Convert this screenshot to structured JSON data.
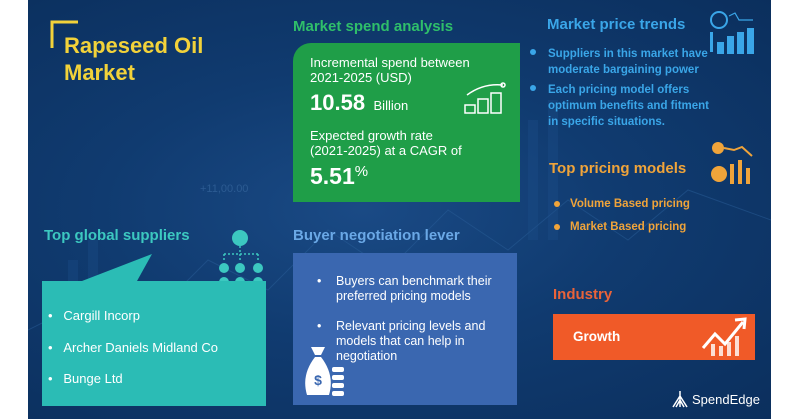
{
  "title": {
    "line1": "Rapeseed Oil",
    "line2": "Market"
  },
  "watermark": "+11,00.00",
  "spend": {
    "heading": "Market spend analysis",
    "incremental_label_1": "Incremental spend between",
    "incremental_label_2": "2021-2025 (USD)",
    "value": "10.58",
    "unit": "Billion",
    "growth_label_1": "Expected growth rate",
    "growth_label_2": "(2021-2025) at a CAGR of",
    "cagr": "5.51",
    "cagr_unit": "%"
  },
  "price_trends": {
    "heading": "Market price trends",
    "items": [
      {
        "l1": "Suppliers in this market have",
        "l2": "moderate bargaining power"
      },
      {
        "l1": "Each pricing model offers",
        "l2": "optimum benefits and fitment",
        "l3": "in specific situations."
      }
    ]
  },
  "pricing_models": {
    "heading": "Top pricing models",
    "items": [
      "Volume Based pricing",
      "Market Based pricing"
    ]
  },
  "suppliers": {
    "heading": "Top global suppliers",
    "items": [
      "Cargill Incorp",
      "Archer Daniels Midland Co",
      "Bunge Ltd"
    ]
  },
  "negotiation": {
    "heading": "Buyer negotiation lever",
    "items": [
      {
        "l1": "Buyers can benchmark their",
        "l2": "preferred pricing models"
      },
      {
        "l1": "Relevant pricing levels and",
        "l2": "models that can help in",
        "l3": "negotiation"
      }
    ]
  },
  "industry": {
    "heading": "Industry",
    "value": "Growth"
  },
  "logo": "SpendEdge",
  "colors": {
    "background": "#103b70",
    "title": "#f2d23a",
    "spend_green": "#1f9e48",
    "trends_blue": "#3aa6e8",
    "pricing_orange": "#f0a43a",
    "suppliers_teal": "#2bbcb5",
    "negotiation_blue": "#3a67b0",
    "industry_orange": "#f05a28"
  }
}
